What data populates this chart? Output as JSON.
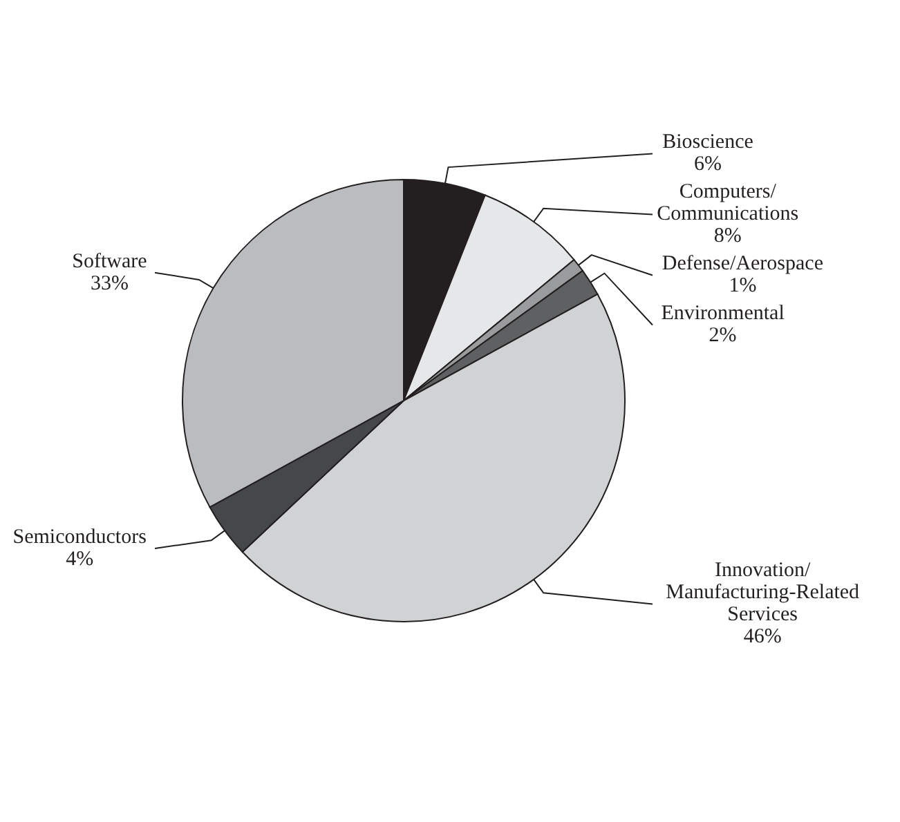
{
  "chart_data": {
    "type": "pie",
    "categories": [
      "Bioscience",
      "Computers/Communications",
      "Defense/Aerospace",
      "Environmental",
      "Innovation/Manufacturing-Related Services",
      "Semiconductors",
      "Software"
    ],
    "values": [
      6,
      8,
      1,
      2,
      46,
      4,
      33
    ],
    "value_labels": [
      "6%",
      "8%",
      "1%",
      "2%",
      "46%",
      "4%",
      "33%"
    ],
    "colors": [
      "#231f20",
      "#e6e7e8",
      "#9a9b9d",
      "#5f6062",
      "#d1d2d4",
      "#46474a",
      "#bbbcbf"
    ]
  }
}
